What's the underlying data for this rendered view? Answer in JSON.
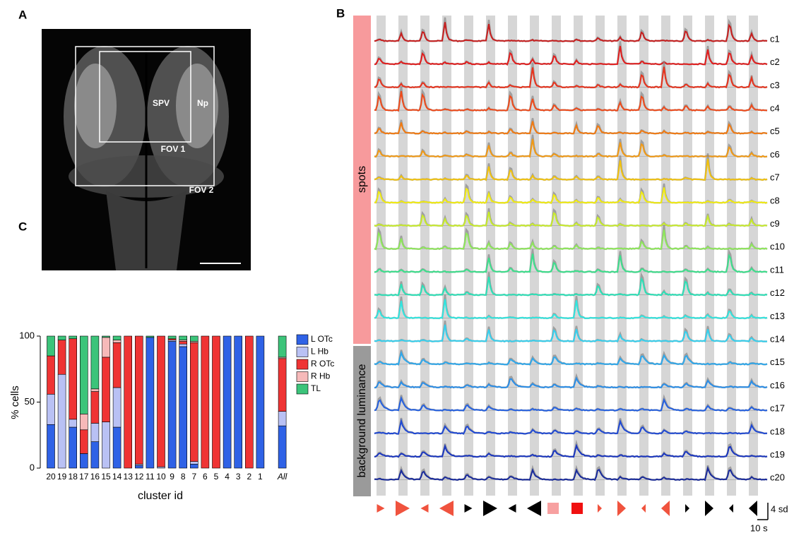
{
  "panel_labels": [
    "A",
    "B",
    "C"
  ],
  "image": {
    "labels": [
      "SPV",
      "Np",
      "FOV 1",
      "FOV 2"
    ]
  },
  "traces": {
    "group_labels": [
      "spots",
      "background luminance"
    ],
    "clusters": [
      "c1",
      "c2",
      "c3",
      "c4",
      "c5",
      "c6",
      "c7",
      "c8",
      "c9",
      "c10",
      "c11",
      "c12",
      "c13",
      "c14",
      "c15",
      "c16",
      "c17",
      "c18",
      "c19",
      "c20"
    ],
    "scale_y": "4 sd",
    "scale_x": "10 s"
  },
  "chart_data": {
    "type": "stacked_bar",
    "xlabel": "cluster id",
    "ylabel": "% cells",
    "categories": [
      "20",
      "19",
      "18",
      "17",
      "16",
      "15",
      "14",
      "13",
      "12",
      "11",
      "10",
      "9",
      "8",
      "7",
      "6",
      "5",
      "4",
      "3",
      "2",
      "1",
      null,
      "All"
    ],
    "ylim": [
      0,
      100
    ],
    "yticks": [
      0,
      50,
      100
    ],
    "series": [
      {
        "name": "L OTc",
        "color": "#2f62e6",
        "values": [
          33,
          0,
          31,
          11,
          20,
          0,
          31,
          0,
          2,
          99,
          0,
          96,
          92,
          3,
          0,
          0,
          100,
          100,
          0,
          100,
          null,
          32
        ]
      },
      {
        "name": "L Hb",
        "color": "#b9c1f4",
        "values": [
          23,
          71,
          6,
          0,
          14,
          35,
          30,
          0,
          1,
          0,
          1,
          1,
          2,
          2,
          0,
          0,
          0,
          0,
          0,
          0,
          null,
          11
        ]
      },
      {
        "name": "R OTc",
        "color": "#ef3434",
        "values": [
          29,
          26,
          61,
          18,
          24,
          49,
          34,
          100,
          97,
          0,
          99,
          1,
          2,
          90,
          100,
          100,
          0,
          0,
          100,
          0,
          null,
          40
        ]
      },
      {
        "name": "R Hb",
        "color": "#f6b9b9",
        "values": [
          0,
          0,
          0,
          12,
          2,
          15,
          2,
          0,
          0,
          0,
          0,
          0,
          1,
          1,
          0,
          0,
          0,
          0,
          0,
          0,
          null,
          1
        ]
      },
      {
        "name": "TL",
        "color": "#3cc47a",
        "values": [
          15,
          3,
          2,
          59,
          40,
          1,
          3,
          0,
          0,
          1,
          0,
          2,
          3,
          4,
          0,
          0,
          0,
          0,
          0,
          0,
          null,
          16
        ]
      }
    ]
  }
}
